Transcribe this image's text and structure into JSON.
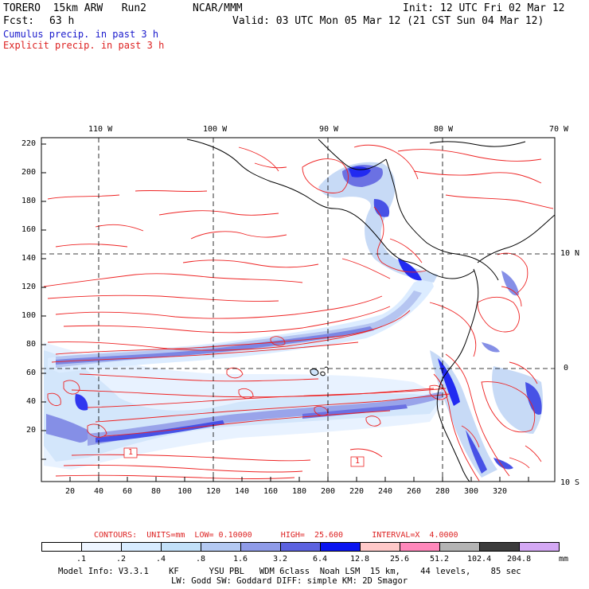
{
  "header": {
    "model": "TORERO  15km ARW   Run2",
    "org": "NCAR/MMM",
    "init": "Init: 12 UTC Fri 02 Mar 12",
    "fcst_label": "Fcst:",
    "fcst_value": "63 h",
    "valid": "Valid: 03 UTC Mon 05 Mar 12 (21 CST Sun 04 Mar 12)",
    "legend_cumulus": "Cumulus precip. in past 3 h",
    "legend_explicit": "Explicit precip. in past 3 h"
  },
  "map": {
    "top_lon_labels": [
      "110 W",
      "100 W",
      "90 W",
      "80 W",
      "70 W"
    ],
    "right_lat_labels": [
      "10 N",
      "0",
      "10 S"
    ],
    "left_y_ticks": [
      "220",
      "200",
      "180",
      "160",
      "140",
      "120",
      "100",
      "80",
      "60",
      "40",
      "20"
    ],
    "bottom_x_ticks": [
      "20",
      "40",
      "60",
      "80",
      "100",
      "120",
      "140",
      "160",
      "180",
      "200",
      "220",
      "240",
      "260",
      "280",
      "300",
      "320"
    ],
    "box_labels": [
      "1",
      "1"
    ],
    "colors": {
      "contour": "#ee2222",
      "coast": "#000000",
      "grid": "#000000"
    }
  },
  "footer": {
    "contours_line": "CONTOURS:  UNITS=mm  LOW= 0.10000      HIGH=  25.600      INTERVAL=X  4.0000",
    "colorbar_labels": [
      ".1",
      ".2",
      ".4",
      ".8",
      "1.6",
      "3.2",
      "6.4",
      "12.8",
      "25.6",
      "51.2",
      "102.4",
      "204.8"
    ],
    "colorbar_colors": [
      "#ffffff",
      "#eef5ff",
      "#d8ecff",
      "#c2e0f8",
      "#b4c9f2",
      "#8f9be8",
      "#5c62e0",
      "#0a14f0",
      "#ffc9c9",
      "#ff88bb",
      "#b4b4b4",
      "#3c3c3c",
      "#d4a8f4"
    ],
    "units": "mm",
    "model_info_1": "Model Info: V3.3.1    KF      YSU PBL   WDM 6class  Noah LSM  15 km,    44 levels,    85 sec",
    "model_info_2": "LW: Godd SW: Goddard DIFF: simple KM: 2D Smagor"
  }
}
